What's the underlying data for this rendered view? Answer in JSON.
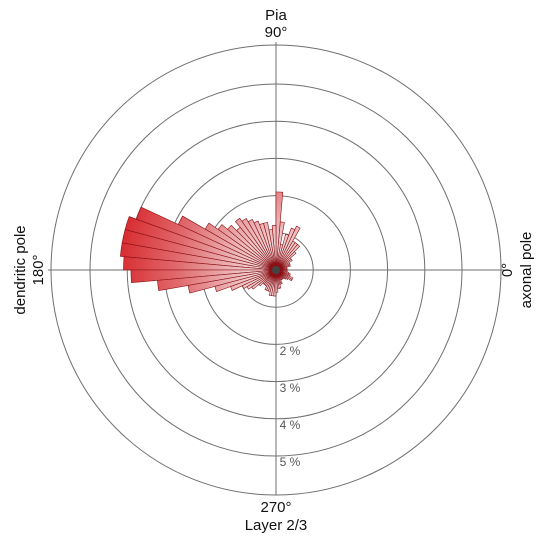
{
  "chart_data": {
    "type": "polar-histogram",
    "angle_labels": {
      "top": [
        "Pia",
        "90°"
      ],
      "left": [
        "dendritic pole",
        "180°"
      ],
      "right": [
        "0°",
        "axonal pole"
      ],
      "bottom": [
        "270°",
        "Layer 2/3"
      ]
    },
    "ring_labels": [
      "2 %",
      "3 %",
      "4 %",
      "5 %"
    ],
    "rings_percent": [
      1,
      2,
      3,
      4,
      5
    ],
    "bin_width_deg": 5,
    "bins": [
      {
        "angle": 2.5,
        "value": 0.3
      },
      {
        "angle": 7.5,
        "value": 0.3
      },
      {
        "angle": 12.5,
        "value": 0.3
      },
      {
        "angle": 17.5,
        "value": 0.4
      },
      {
        "angle": 22.5,
        "value": 0.4
      },
      {
        "angle": 27.5,
        "value": 0.4
      },
      {
        "angle": 32.5,
        "value": 0.5
      },
      {
        "angle": 37.5,
        "value": 0.5
      },
      {
        "angle": 42.5,
        "value": 0.7
      },
      {
        "angle": 47.5,
        "value": 0.9
      },
      {
        "angle": 52.5,
        "value": 0.9
      },
      {
        "angle": 57.5,
        "value": 0.9
      },
      {
        "angle": 62.5,
        "value": 1.3
      },
      {
        "angle": 67.5,
        "value": 1.2
      },
      {
        "angle": 72.5,
        "value": 1.0
      },
      {
        "angle": 77.5,
        "value": 0.7
      },
      {
        "angle": 82.5,
        "value": 1.3
      },
      {
        "angle": 87.5,
        "value": 2.1
      },
      {
        "angle": 92.5,
        "value": 1.2
      },
      {
        "angle": 97.5,
        "value": 1.1
      },
      {
        "angle": 102.5,
        "value": 1.3
      },
      {
        "angle": 107.5,
        "value": 1.3
      },
      {
        "angle": 112.5,
        "value": 1.4
      },
      {
        "angle": 117.5,
        "value": 1.5
      },
      {
        "angle": 122.5,
        "value": 1.6
      },
      {
        "angle": 127.5,
        "value": 1.7
      },
      {
        "angle": 132.5,
        "value": 1.5
      },
      {
        "angle": 137.5,
        "value": 1.7
      },
      {
        "angle": 142.5,
        "value": 1.9
      },
      {
        "angle": 147.5,
        "value": 2.2
      },
      {
        "angle": 152.5,
        "value": 2.9
      },
      {
        "angle": 157.5,
        "value": 4.0
      },
      {
        "angle": 162.5,
        "value": 4.2
      },
      {
        "angle": 167.5,
        "value": 4.2
      },
      {
        "angle": 172.5,
        "value": 4.2
      },
      {
        "angle": 177.5,
        "value": 4.1
      },
      {
        "angle": 182.5,
        "value": 3.9
      },
      {
        "angle": 187.5,
        "value": 3.2
      },
      {
        "angle": 192.5,
        "value": 2.4
      },
      {
        "angle": 197.5,
        "value": 1.7
      },
      {
        "angle": 202.5,
        "value": 1.3
      },
      {
        "angle": 207.5,
        "value": 1.0
      },
      {
        "angle": 212.5,
        "value": 0.9
      },
      {
        "angle": 217.5,
        "value": 0.8
      },
      {
        "angle": 222.5,
        "value": 0.6
      },
      {
        "angle": 227.5,
        "value": 0.5
      },
      {
        "angle": 232.5,
        "value": 0.5
      },
      {
        "angle": 237.5,
        "value": 0.5
      },
      {
        "angle": 242.5,
        "value": 0.6
      },
      {
        "angle": 247.5,
        "value": 0.6
      },
      {
        "angle": 252.5,
        "value": 0.6
      },
      {
        "angle": 257.5,
        "value": 0.7
      },
      {
        "angle": 262.5,
        "value": 0.7
      },
      {
        "angle": 267.5,
        "value": 0.7
      },
      {
        "angle": 272.5,
        "value": 0.6
      },
      {
        "angle": 277.5,
        "value": 0.5
      },
      {
        "angle": 282.5,
        "value": 0.5
      },
      {
        "angle": 287.5,
        "value": 0.4
      },
      {
        "angle": 292.5,
        "value": 0.4
      },
      {
        "angle": 297.5,
        "value": 0.3
      },
      {
        "angle": 302.5,
        "value": 0.3
      },
      {
        "angle": 307.5,
        "value": 0.3
      },
      {
        "angle": 312.5,
        "value": 0.3
      },
      {
        "angle": 317.5,
        "value": 0.35
      },
      {
        "angle": 322.5,
        "value": 0.4
      },
      {
        "angle": 327.5,
        "value": 0.5
      },
      {
        "angle": 332.5,
        "value": 0.5
      },
      {
        "angle": 337.5,
        "value": 0.4
      },
      {
        "angle": 342.5,
        "value": 0.4
      },
      {
        "angle": 347.5,
        "value": 0.35
      },
      {
        "angle": 352.5,
        "value": 0.3
      },
      {
        "angle": 357.5,
        "value": 0.3
      }
    ],
    "colors": {
      "petal_outer": "#d41419",
      "petal_inner": "#f4f4f4",
      "petal_stroke": "#8a0f14",
      "center_dot": "#444444",
      "ring": "#6f6f6f"
    }
  }
}
